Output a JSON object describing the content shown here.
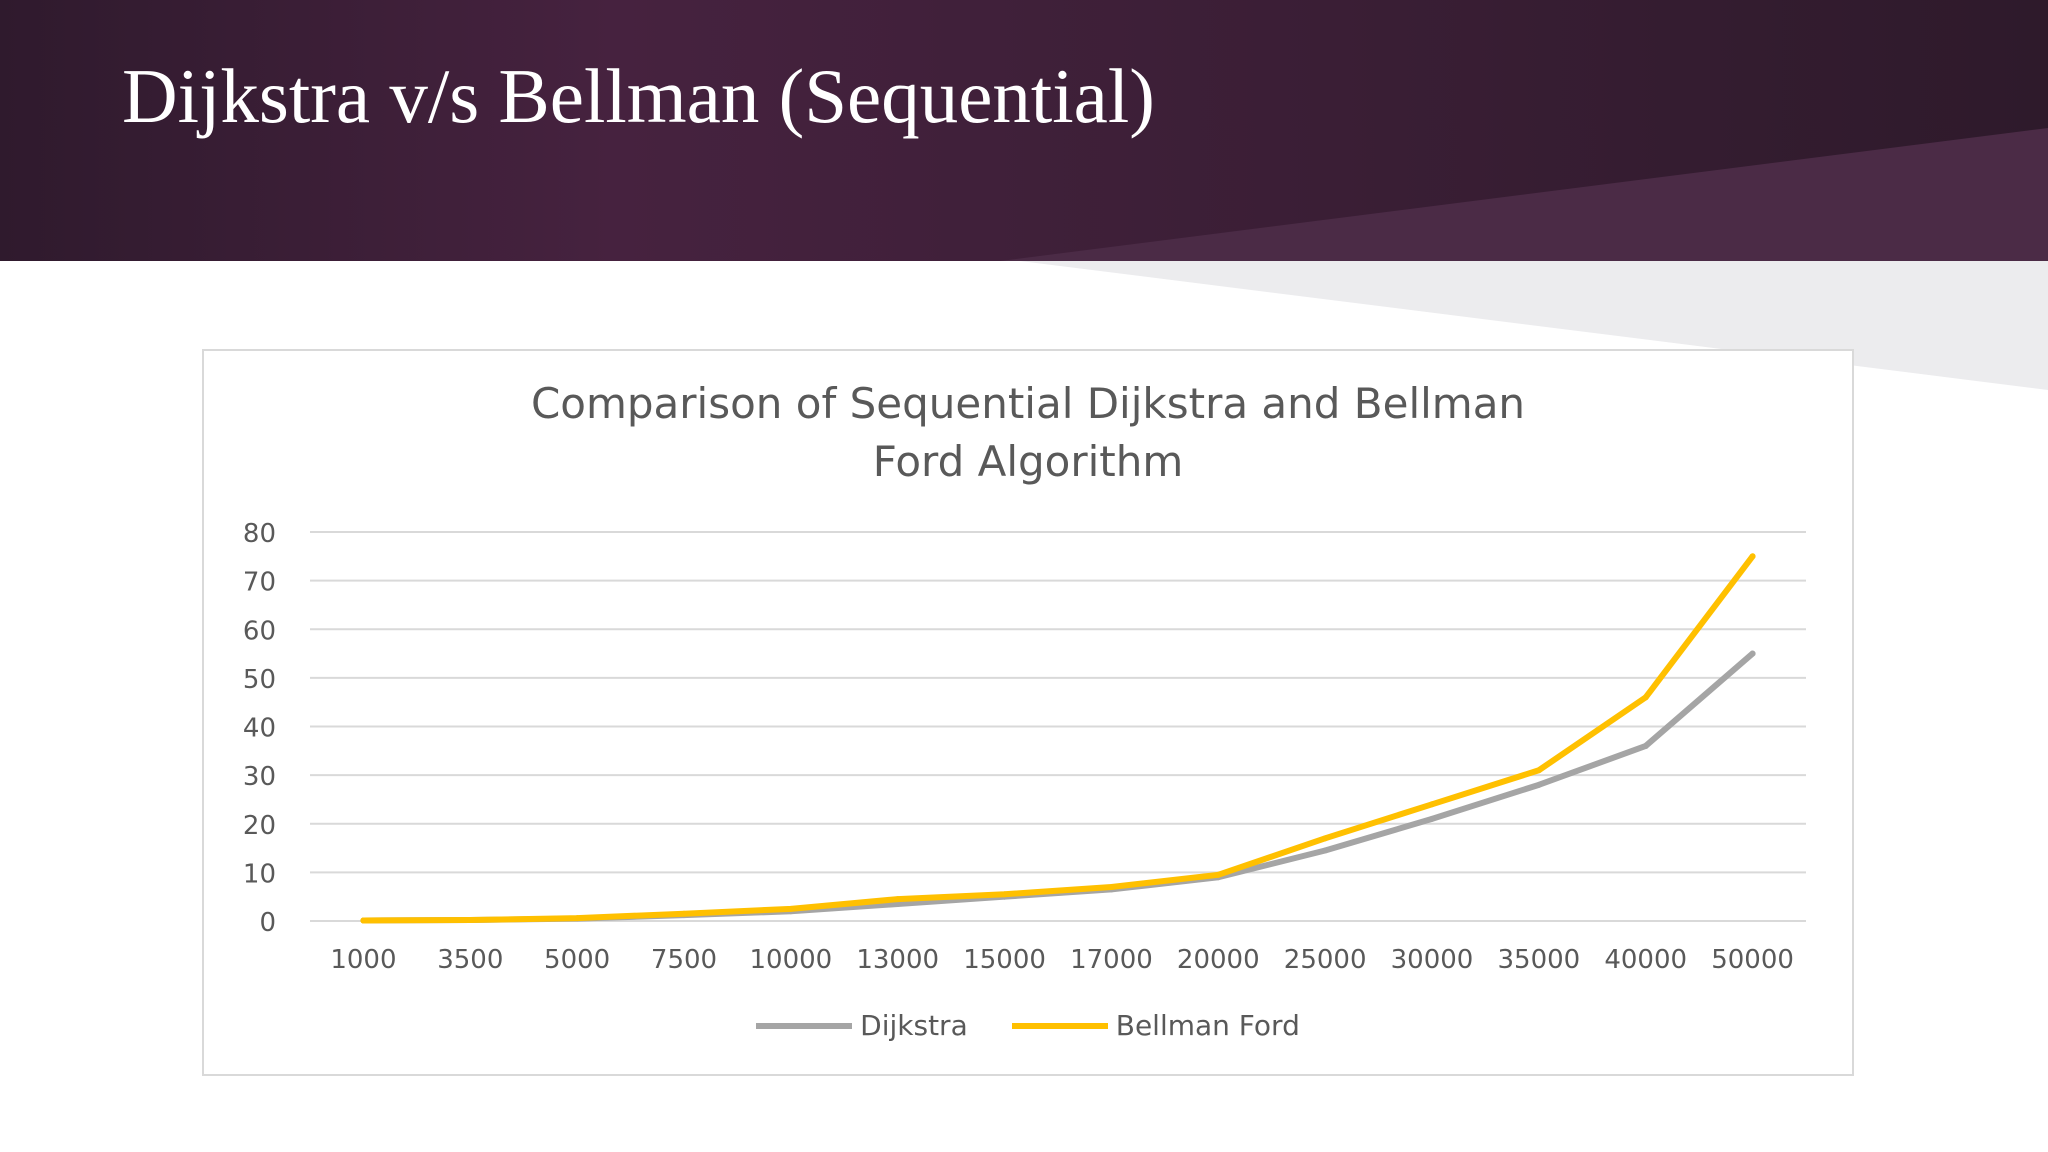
{
  "slide": {
    "title": "Dijkstra v/s Bellman (Sequential)",
    "colors": {
      "header": "#3a1f35",
      "accent_band": "#4b2b46",
      "light_band": "#ececee"
    }
  },
  "chart_data": {
    "type": "line",
    "title_lines": [
      "Comparison of Sequential  Dijkstra and Bellman",
      "Ford Algorithm"
    ],
    "categories": [
      "1000",
      "3500",
      "5000",
      "7500",
      "10000",
      "13000",
      "15000",
      "17000",
      "20000",
      "25000",
      "30000",
      "35000",
      "40000",
      "50000"
    ],
    "series": [
      {
        "name": "Dijkstra",
        "color": "#a5a5a5",
        "values": [
          0.1,
          0.2,
          0.5,
          1.2,
          2,
          3.5,
          5,
          6.5,
          9,
          14.5,
          21,
          28,
          36,
          55
        ]
      },
      {
        "name": "Bellman Ford",
        "color": "#ffc000",
        "values": [
          0.1,
          0.2,
          0.6,
          1.5,
          2.5,
          4.5,
          5.5,
          7,
          9.5,
          17,
          24,
          31,
          46,
          75
        ]
      }
    ],
    "yticks": [
      "0",
      "10",
      "20",
      "30",
      "40",
      "50",
      "60",
      "70",
      "80"
    ],
    "ylim": [
      0,
      80
    ],
    "grid": true,
    "legend_position": "bottom"
  }
}
